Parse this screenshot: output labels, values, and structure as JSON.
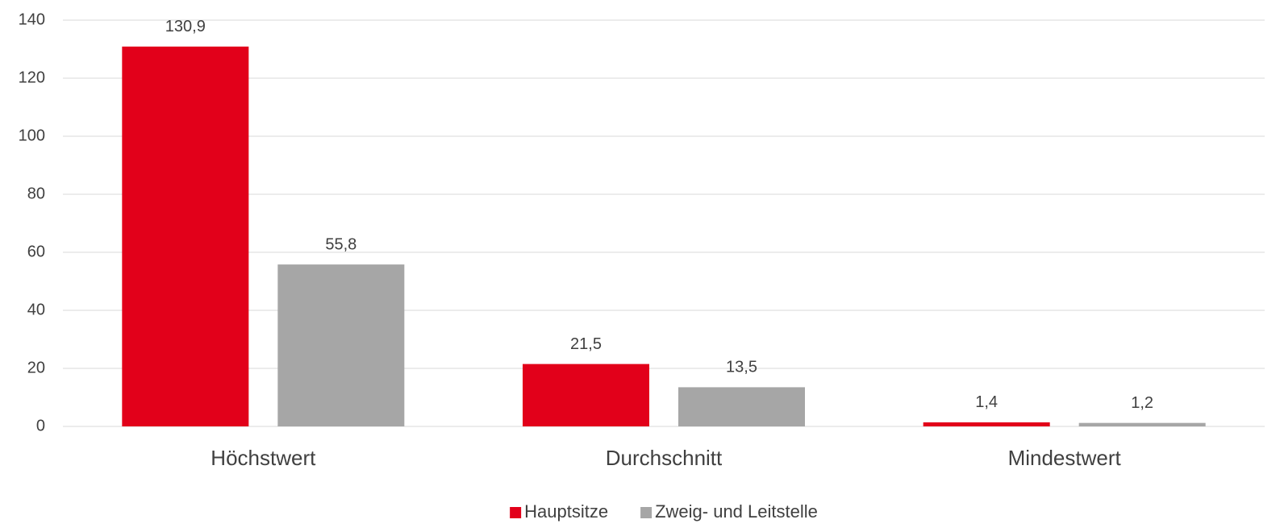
{
  "chart_data": {
    "type": "bar",
    "categories": [
      "Höchstwert",
      "Durchschnitt",
      "Mindestwert"
    ],
    "series": [
      {
        "name": "Hauptsitze",
        "color": "#e2001a",
        "values": [
          130.9,
          21.5,
          1.4
        ],
        "value_labels": [
          "130,9",
          "21,5",
          "1,4"
        ]
      },
      {
        "name": "Zweig- und Leitstelle",
        "color": "#a6a6a6",
        "values": [
          55.8,
          13.5,
          1.2
        ],
        "value_labels": [
          "55,8",
          "13,5",
          "1,2"
        ]
      }
    ],
    "ylim": [
      0,
      140
    ],
    "yticks": [
      0,
      20,
      40,
      60,
      80,
      100,
      120,
      140
    ],
    "grid": true,
    "legend": "bottom"
  }
}
